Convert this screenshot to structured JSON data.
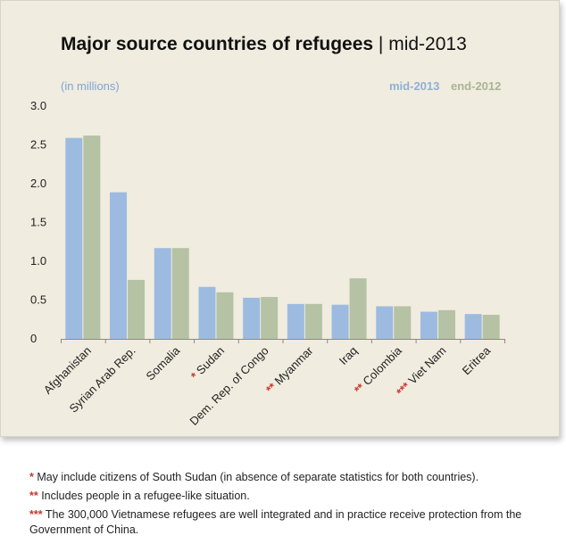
{
  "title_bold": "Major source countries of refugees",
  "title_rest": " | mid-2013",
  "units_label": "(in millions)",
  "legend": {
    "mid": "mid-2013",
    "end": "end-2012"
  },
  "colors": {
    "mid": "#9dbbe0",
    "end": "#b5c2a4",
    "star": "#c8362f"
  },
  "chart_data": {
    "type": "bar",
    "categories": [
      {
        "label": "Afghanistan",
        "prefix": ""
      },
      {
        "label": "Syrian Arab Rep.",
        "prefix": ""
      },
      {
        "label": "Somalia",
        "prefix": ""
      },
      {
        "label": "Sudan",
        "prefix": "*"
      },
      {
        "label": "Dem. Rep. of Congo",
        "prefix": ""
      },
      {
        "label": "Myanmar",
        "prefix": "**"
      },
      {
        "label": "Iraq",
        "prefix": ""
      },
      {
        "label": "Colombia",
        "prefix": "**"
      },
      {
        "label": "Viet Nam",
        "prefix": "***"
      },
      {
        "label": "Eritrea",
        "prefix": ""
      }
    ],
    "series": [
      {
        "name": "mid-2013",
        "values": [
          2.59,
          1.89,
          1.17,
          0.67,
          0.53,
          0.45,
          0.44,
          0.42,
          0.35,
          0.32
        ]
      },
      {
        "name": "end-2012",
        "values": [
          2.62,
          0.76,
          1.17,
          0.6,
          0.54,
          0.45,
          0.78,
          0.42,
          0.37,
          0.31
        ]
      }
    ],
    "yticks": [
      "0",
      "0.5",
      "1.0",
      "1.5",
      "2.0",
      "2.5",
      "3.0"
    ],
    "ylim": [
      0,
      3.0
    ]
  },
  "footnotes": [
    {
      "mark": "*",
      "text": " May include citizens of South Sudan (in absence of separate statistics for both countries)."
    },
    {
      "mark": "**",
      "text": " Includes people in a refugee-like situation."
    },
    {
      "mark": "***",
      "text": " The 300,000 Vietnamese refugees are well integrated and in practice receive protection from the Government of China."
    }
  ]
}
